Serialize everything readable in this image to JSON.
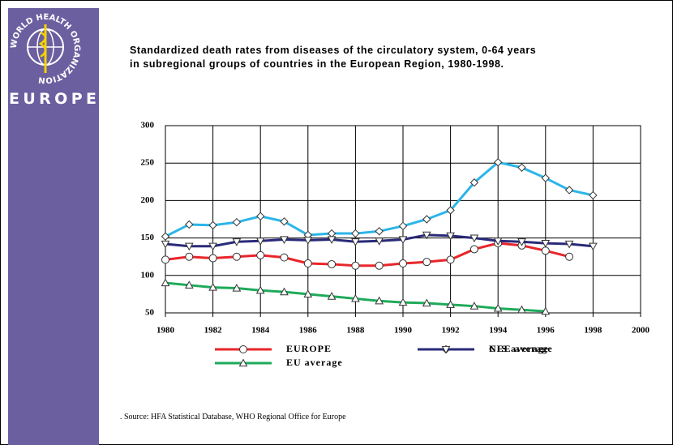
{
  "chart_data": {
    "type": "line",
    "logo_text": "WORLD HEALTH ORGANIZATION",
    "logo_region": "EUROPE",
    "title": "Standardized death rates from diseases of the circulatory system, 0-64 years",
    "subtitle": "in subregional groups of countries in the European Region, 1980-1998.",
    "source": ". Source: HFA Statistical Database, WHO Regional Office for Europe",
    "x": [
      1980,
      1981,
      1982,
      1983,
      1984,
      1985,
      1986,
      1987,
      1988,
      1989,
      1990,
      1991,
      1992,
      1993,
      1994,
      1995,
      1996,
      1997,
      1998
    ],
    "series": [
      {
        "name": "EUROPE",
        "color": "#e8262a",
        "marker": "circle",
        "values": [
          121,
          125,
          123,
          125,
          127,
          124,
          116,
          115,
          113,
          113,
          116,
          118,
          121,
          135,
          143,
          140,
          133,
          125,
          null
        ]
      },
      {
        "name": "NIS average",
        "color": "#2bb5e8",
        "marker": "diamond",
        "values": [
          152,
          168,
          167,
          171,
          179,
          172,
          154,
          156,
          156,
          159,
          166,
          175,
          187,
          224,
          251,
          244,
          230,
          214,
          207
        ]
      },
      {
        "name": "EU average",
        "color": "#1faa5a",
        "marker": "triangle-up",
        "values": [
          90,
          87,
          84,
          83,
          80,
          78,
          75,
          72,
          69,
          66,
          64,
          63,
          61,
          59,
          56,
          54,
          52,
          null,
          null
        ]
      },
      {
        "name": "CEE average",
        "color": "#2a2a7a",
        "marker": "triangle-down",
        "values": [
          142,
          139,
          139,
          145,
          146,
          148,
          147,
          148,
          145,
          146,
          148,
          154,
          153,
          150,
          146,
          145,
          143,
          142,
          139
        ]
      }
    ],
    "xlim": [
      1980,
      2000
    ],
    "xticks": [
      1980,
      1982,
      1984,
      1986,
      1988,
      1990,
      1992,
      1994,
      1996,
      1998,
      2000
    ],
    "ylim": [
      50,
      300
    ],
    "yticks": [
      50,
      100,
      150,
      200,
      250,
      300
    ],
    "grid": true
  }
}
